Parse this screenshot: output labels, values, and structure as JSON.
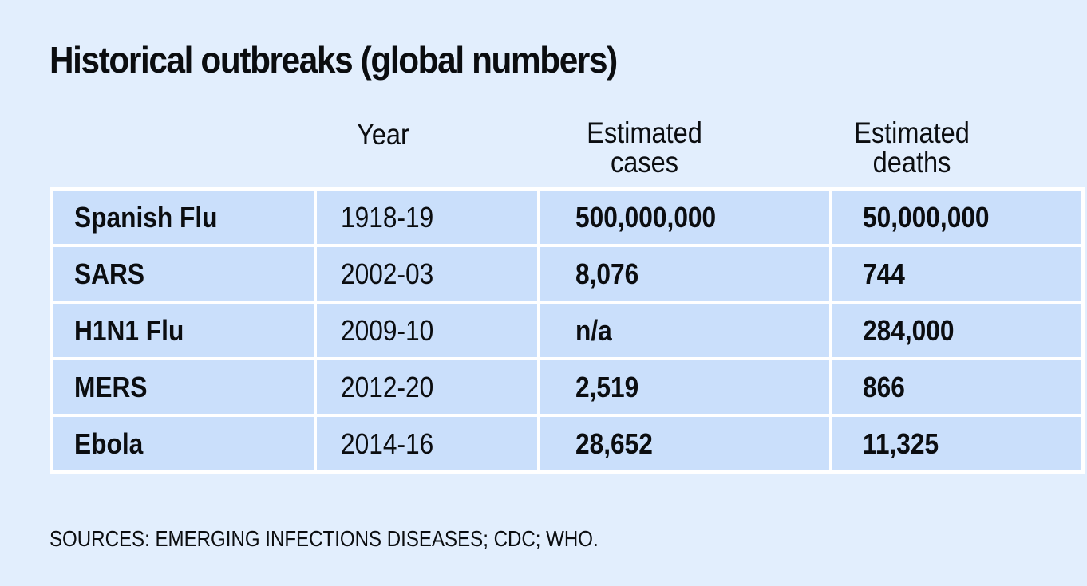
{
  "chart_data": {
    "type": "table",
    "title": "Historical outbreaks (global numbers)",
    "columns": [
      "",
      "Year",
      "Estimated cases",
      "Estimated deaths"
    ],
    "header_lines": {
      "year": "Year",
      "cases": [
        "Estimated",
        "cases"
      ],
      "deaths": [
        "Estimated",
        "deaths"
      ]
    },
    "rows": [
      {
        "name": "Spanish Flu",
        "year": "1918-19",
        "cases": "500,000,000",
        "deaths": "50,000,000"
      },
      {
        "name": "SARS",
        "year": "2002-03",
        "cases": "8,076",
        "deaths": "744"
      },
      {
        "name": "H1N1 Flu",
        "year": "2009-10",
        "cases": "n/a",
        "deaths": "284,000"
      },
      {
        "name": "MERS",
        "year": "2012-20",
        "cases": "2,519",
        "deaths": "866"
      },
      {
        "name": "Ebola",
        "year": "2014-16",
        "cases": "28,652",
        "deaths": "11,325"
      }
    ],
    "source": "SOURCES: EMERGING INFECTIONS DISEASES; CDC; WHO."
  },
  "colors": {
    "background": "#e2eefd",
    "cell": "#cadffb",
    "grid": "#ffffff",
    "text": "#0b0d10"
  }
}
